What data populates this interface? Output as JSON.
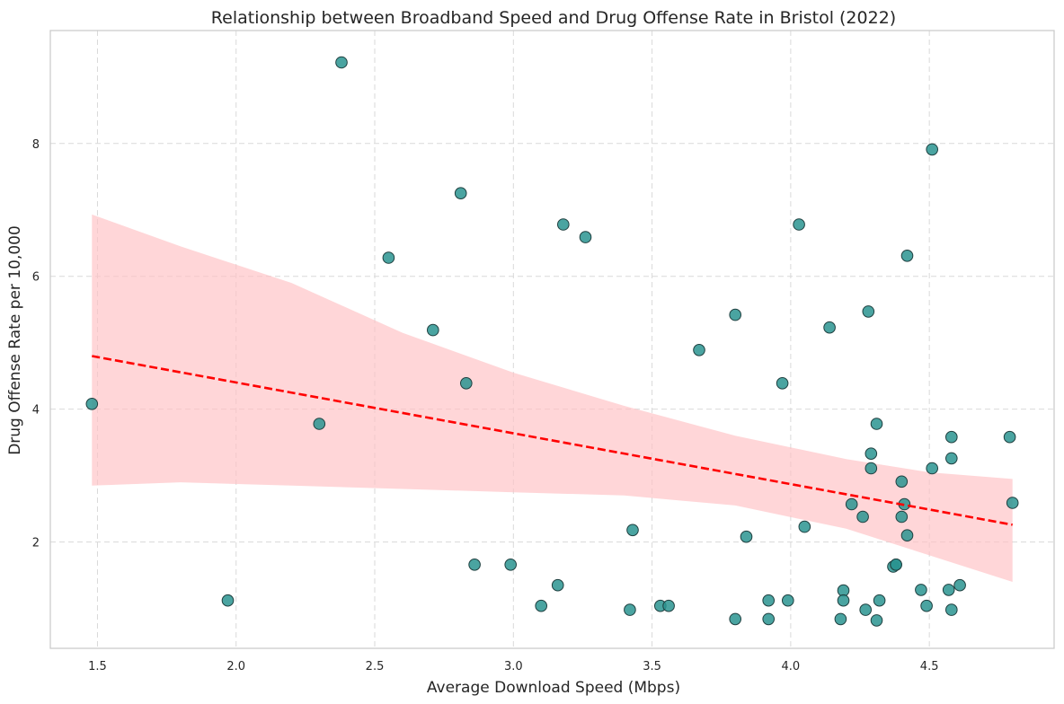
{
  "chart_data": {
    "type": "scatter",
    "title": "Relationship between Broadband Speed and Drug Offense Rate in Bristol (2022)",
    "xlabel": "Average Download Speed (Mbps)",
    "ylabel": "Drug Offense Rate per 10,000",
    "xlim": [
      1.33,
      4.95
    ],
    "ylim": [
      0.4,
      9.7
    ],
    "xticks": [
      "1.5",
      "2.0",
      "2.5",
      "3.0",
      "3.5",
      "4.0",
      "4.5"
    ],
    "xtick_values": [
      1.5,
      2.0,
      2.5,
      3.0,
      3.5,
      4.0,
      4.5
    ],
    "yticks": [
      "2",
      "4",
      "6",
      "8"
    ],
    "ytick_values": [
      2,
      4,
      6,
      8
    ],
    "grid": true,
    "colors": {
      "points": "#2a9490",
      "trend": "#ff0000",
      "band": "#ffc0c3"
    },
    "points": [
      [
        1.48,
        4.08
      ],
      [
        1.97,
        1.12
      ],
      [
        2.3,
        3.78
      ],
      [
        2.38,
        9.22
      ],
      [
        2.55,
        6.28
      ],
      [
        2.71,
        5.19
      ],
      [
        2.81,
        7.25
      ],
      [
        2.83,
        4.39
      ],
      [
        2.86,
        1.66
      ],
      [
        2.99,
        1.66
      ],
      [
        3.1,
        1.04
      ],
      [
        3.16,
        1.35
      ],
      [
        3.18,
        6.78
      ],
      [
        3.26,
        6.59
      ],
      [
        3.42,
        0.98
      ],
      [
        3.43,
        2.18
      ],
      [
        3.53,
        1.04
      ],
      [
        3.56,
        1.04
      ],
      [
        3.67,
        4.89
      ],
      [
        3.8,
        5.42
      ],
      [
        3.8,
        0.84
      ],
      [
        3.84,
        2.08
      ],
      [
        3.92,
        1.12
      ],
      [
        3.92,
        0.84
      ],
      [
        3.97,
        4.39
      ],
      [
        3.99,
        1.12
      ],
      [
        4.03,
        6.78
      ],
      [
        4.05,
        2.23
      ],
      [
        4.14,
        5.23
      ],
      [
        4.18,
        0.84
      ],
      [
        4.19,
        1.27
      ],
      [
        4.19,
        1.12
      ],
      [
        4.22,
        2.57
      ],
      [
        4.26,
        2.38
      ],
      [
        4.27,
        0.98
      ],
      [
        4.28,
        5.47
      ],
      [
        4.29,
        3.33
      ],
      [
        4.29,
        3.11
      ],
      [
        4.31,
        3.78
      ],
      [
        4.31,
        0.82
      ],
      [
        4.32,
        1.12
      ],
      [
        4.37,
        1.63
      ],
      [
        4.38,
        1.66
      ],
      [
        4.38,
        1.66
      ],
      [
        4.4,
        2.91
      ],
      [
        4.4,
        2.38
      ],
      [
        4.41,
        2.57
      ],
      [
        4.42,
        2.1
      ],
      [
        4.42,
        6.31
      ],
      [
        4.47,
        1.28
      ],
      [
        4.49,
        1.04
      ],
      [
        4.51,
        7.91
      ],
      [
        4.51,
        3.11
      ],
      [
        4.57,
        1.28
      ],
      [
        4.58,
        3.58
      ],
      [
        4.58,
        3.26
      ],
      [
        4.58,
        0.98
      ],
      [
        4.61,
        1.35
      ],
      [
        4.79,
        3.58
      ],
      [
        4.8,
        2.59
      ]
    ],
    "trend_line": {
      "x": [
        1.48,
        4.8
      ],
      "y": [
        4.8,
        2.26
      ]
    },
    "confidence_band": {
      "x": [
        1.48,
        1.8,
        2.2,
        2.6,
        3.0,
        3.4,
        3.8,
        4.2,
        4.5,
        4.8
      ],
      "upper": [
        6.93,
        6.45,
        5.9,
        5.15,
        4.55,
        4.05,
        3.6,
        3.25,
        3.05,
        2.95
      ],
      "lower": [
        2.85,
        2.9,
        2.85,
        2.8,
        2.75,
        2.7,
        2.55,
        2.2,
        1.8,
        1.4
      ]
    }
  }
}
